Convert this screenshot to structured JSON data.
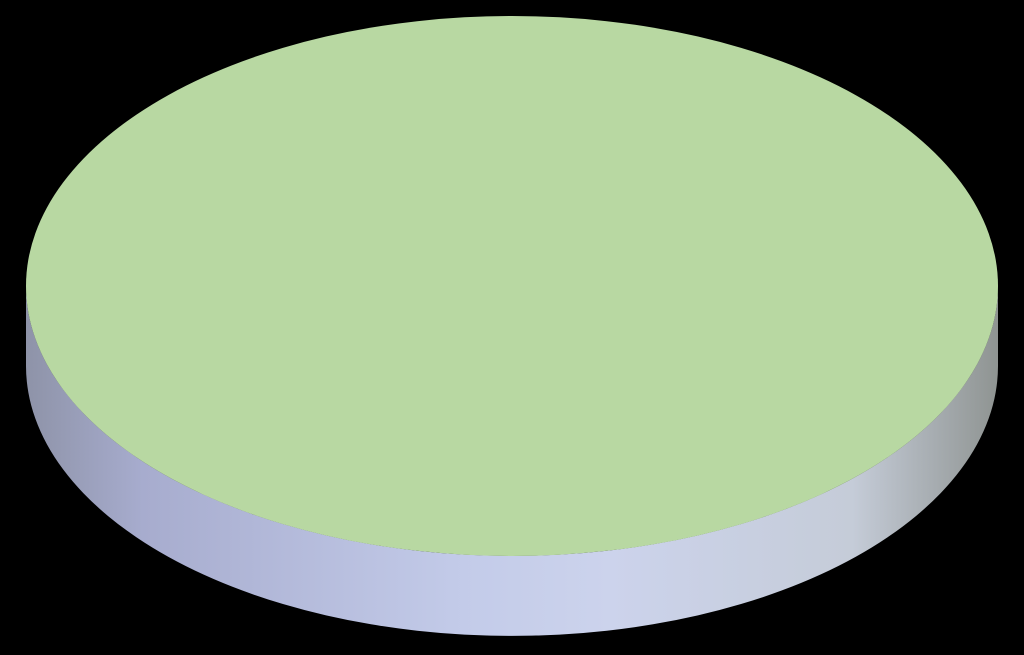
{
  "chart_data": {
    "type": "pie",
    "style": "3d",
    "categories": [
      ""
    ],
    "values": [
      100
    ],
    "slice_colors": [
      "#b8d8a2"
    ],
    "side_color": "#c2cbe8",
    "background_color": "#000000",
    "legend": "none",
    "data_labels": "none"
  }
}
